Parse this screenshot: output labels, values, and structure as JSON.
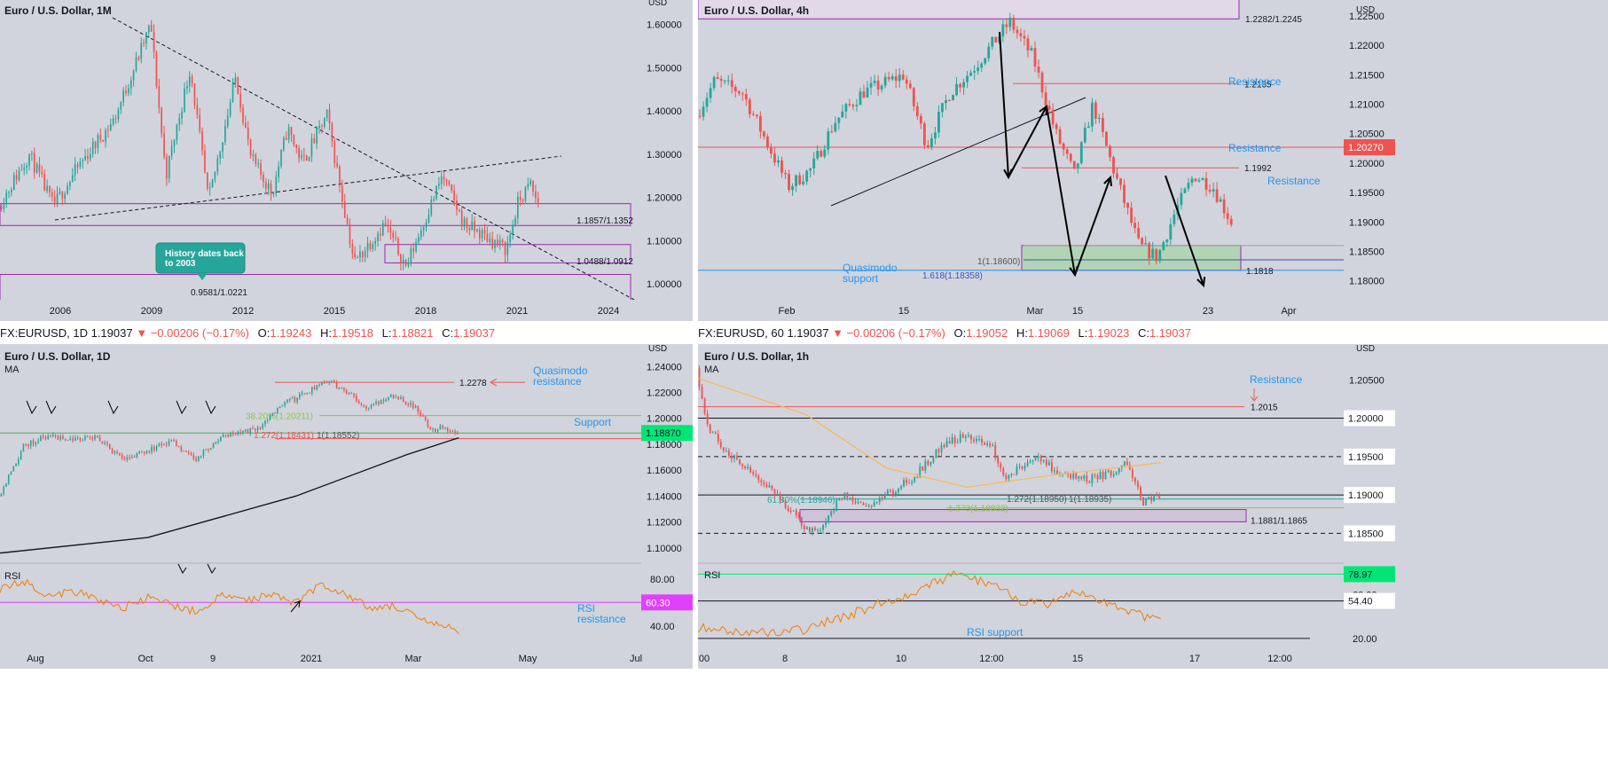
{
  "colors": {
    "bg": "#d1d4dc",
    "up": "#26a69a",
    "down": "#ef5350",
    "blue": "#2196f3",
    "purple": "#9c27b0",
    "rsi": "#f57c00",
    "ma": "#131722",
    "green": "#00e676",
    "magenta": "#e040fb",
    "orange": "#ffb74d"
  },
  "chart_data": [
    {
      "type": "candlestick",
      "title": "Euro / U.S. Dollar, 1M",
      "ylabel": "USD",
      "ylim": [
        0.98,
        1.64
      ],
      "x_ticks": [
        "2006",
        "2009",
        "2012",
        "2015",
        "2018",
        "2021",
        "2024"
      ],
      "y_ticks": [
        "1.60000",
        "1.50000",
        "1.40000",
        "1.30000",
        "1.20000",
        "1.10000",
        "1.00000"
      ],
      "zones": [
        {
          "label": "1.1857/1.1352",
          "top": 1.1857,
          "bottom": 1.1352
        },
        {
          "label": "1.0488/1.0912",
          "top": 1.0912,
          "bottom": 1.0488
        },
        {
          "label": "0.9581/1.0221",
          "top": 1.0221,
          "bottom": 0.9581
        }
      ],
      "annotations": {
        "callout": "History dates back to 2003"
      },
      "path_points": [
        [
          2003.5,
          1.18
        ],
        [
          2004.5,
          1.3
        ],
        [
          2005.3,
          1.18
        ],
        [
          2006.2,
          1.28
        ],
        [
          2007.3,
          1.38
        ],
        [
          2008.5,
          1.6
        ],
        [
          2009.0,
          1.25
        ],
        [
          2009.8,
          1.5
        ],
        [
          2010.4,
          1.19
        ],
        [
          2011.3,
          1.48
        ],
        [
          2011.8,
          1.29
        ],
        [
          2012.5,
          1.21
        ],
        [
          2013.0,
          1.36
        ],
        [
          2013.5,
          1.28
        ],
        [
          2014.3,
          1.39
        ],
        [
          2015.2,
          1.05
        ],
        [
          2016.2,
          1.14
        ],
        [
          2016.9,
          1.04
        ],
        [
          2018.1,
          1.25
        ],
        [
          2018.8,
          1.14
        ],
        [
          2019.5,
          1.11
        ],
        [
          2020.2,
          1.08
        ],
        [
          2020.6,
          1.19
        ],
        [
          2021.0,
          1.23
        ],
        [
          2021.2,
          1.19
        ]
      ]
    },
    {
      "type": "candlestick",
      "title": "Euro / U.S. Dollar, 4h",
      "ylabel": "USD",
      "ylim": [
        1.178,
        1.2265
      ],
      "x_ticks": [
        "Feb",
        "15",
        "Mar",
        "15",
        "23",
        "Apr"
      ],
      "y_ticks": [
        "1.22500",
        "1.22000",
        "1.21500",
        "1.21000",
        "1.20500",
        "1.20000",
        "1.19500",
        "1.19000",
        "1.18500",
        "1.18000"
      ],
      "price_label": "1.20270",
      "levels": [
        {
          "label": "1.2135",
          "text": "Resistance",
          "value": 1.2135
        },
        {
          "label": "",
          "text": "Resistance",
          "value": 1.2027
        },
        {
          "label": "1.1992",
          "text": "Resistance",
          "value": 1.1992
        },
        {
          "label": "1.1818",
          "text": "",
          "value": 1.1818
        }
      ],
      "zones": [
        {
          "label": "1.2282/1.2245",
          "top": 1.2282,
          "bottom": 1.2245
        },
        {
          "label": "",
          "top": 1.186,
          "bottom": 1.1818
        }
      ],
      "annotations": {
        "support": "Quasimodo support",
        "fib1": "1(1.18600)",
        "fib2": "1.618(1.18358)"
      },
      "path_points": [
        [
          0,
          1.208
        ],
        [
          4,
          1.214
        ],
        [
          10,
          1.212
        ],
        [
          20,
          1.196
        ],
        [
          25,
          1.199
        ],
        [
          30,
          1.207
        ],
        [
          36,
          1.212
        ],
        [
          45,
          1.215
        ],
        [
          50,
          1.203
        ],
        [
          55,
          1.212
        ],
        [
          60,
          1.216
        ],
        [
          68,
          1.224
        ],
        [
          73,
          1.218
        ],
        [
          78,
          1.205
        ],
        [
          82,
          1.198
        ],
        [
          86,
          1.21
        ],
        [
          90,
          1.2
        ],
        [
          96,
          1.186
        ],
        [
          100,
          1.184
        ],
        [
          104,
          1.192
        ],
        [
          108,
          1.198
        ],
        [
          112,
          1.196
        ],
        [
          116,
          1.19
        ]
      ]
    },
    {
      "type": "candlestick",
      "title": "Euro / U.S. Dollar, 1D",
      "ylabel": "USD",
      "indicator": "MA",
      "ylim": [
        1.093,
        1.245
      ],
      "x_ticks": [
        "Aug",
        "Oct",
        "9",
        "2021",
        "Mar",
        "May",
        "Jul"
      ],
      "y_ticks": [
        "1.24000",
        "1.22000",
        "1.20000",
        "1.18000",
        "1.16000",
        "1.14000",
        "1.12000",
        "1.10000"
      ],
      "price_label": "1.18870",
      "levels": [
        {
          "label": "1.2278",
          "text": "Quasimodo resistance",
          "value": 1.2278
        },
        {
          "label": "38.20%(1.20211)",
          "text": "Support",
          "value": 1.2021
        },
        {
          "label": "1.272(1.18431)",
          "text": "",
          "value": 1.1843
        },
        {
          "label": "1(1.18552)",
          "text": "",
          "value": 1.1855
        }
      ],
      "path_points": [
        [
          0,
          1.14
        ],
        [
          10,
          1.178
        ],
        [
          18,
          1.186
        ],
        [
          28,
          1.184
        ],
        [
          40,
          1.185
        ],
        [
          50,
          1.168
        ],
        [
          60,
          1.175
        ],
        [
          70,
          1.183
        ],
        [
          80,
          1.168
        ],
        [
          90,
          1.185
        ],
        [
          105,
          1.192
        ],
        [
          115,
          1.21
        ],
        [
          125,
          1.22
        ],
        [
          132,
          1.23
        ],
        [
          140,
          1.222
        ],
        [
          150,
          1.208
        ],
        [
          160,
          1.218
        ],
        [
          168,
          1.21
        ],
        [
          176,
          1.19
        ],
        [
          180,
          1.193
        ],
        [
          186,
          1.19
        ]
      ],
      "ma": [
        [
          0,
          1.096
        ],
        [
          60,
          1.108
        ],
        [
          120,
          1.14
        ],
        [
          165,
          1.172
        ],
        [
          186,
          1.185
        ]
      ],
      "rsi": {
        "label": "RSI",
        "ylim": [
          25,
          90
        ],
        "y_ticks": [
          "80.00",
          "60.00",
          "40.00"
        ],
        "level_label": "60.30",
        "level_value": 60.3,
        "annotation": "RSI resistance",
        "points": [
          [
            0,
            72
          ],
          [
            10,
            78
          ],
          [
            20,
            66
          ],
          [
            30,
            70
          ],
          [
            40,
            62
          ],
          [
            50,
            56
          ],
          [
            60,
            64
          ],
          [
            70,
            58
          ],
          [
            80,
            52
          ],
          [
            90,
            66
          ],
          [
            100,
            62
          ],
          [
            110,
            68
          ],
          [
            120,
            60
          ],
          [
            130,
            76
          ],
          [
            140,
            68
          ],
          [
            150,
            55
          ],
          [
            160,
            58
          ],
          [
            170,
            45
          ],
          [
            180,
            40
          ],
          [
            186,
            35
          ]
        ]
      }
    },
    {
      "type": "candlestick",
      "title": "Euro / U.S. Dollar, 1h",
      "ylabel": "USD",
      "indicator": "MA",
      "ylim": [
        1.1825,
        1.2085
      ],
      "x_ticks": [
        "00",
        "8",
        "10",
        "12:00",
        "15",
        "17",
        "12:00"
      ],
      "y_ticks": [
        "1.20500",
        "1.20000",
        "1.19500",
        "1.19000",
        "1.18500"
      ],
      "price_labels": [
        "1.20000",
        "1.19500",
        "1.19000",
        "1.18500"
      ],
      "levels": [
        {
          "label": "1.2015",
          "text": "Resistance",
          "value": 1.2015
        },
        {
          "label": "61.80%(1.18946)",
          "text": "",
          "value": 1.18946
        },
        {
          "label": "1.272(1.18950)",
          "text": "",
          "value": 1.1895
        },
        {
          "label": "1(1.18935)",
          "text": "",
          "value": 1.18935
        },
        {
          "label": "1.273(1.18832)",
          "text": "",
          "value": 1.18832
        }
      ],
      "zones": [
        {
          "label": "1.1881/1.1865",
          "top": 1.1881,
          "bottom": 1.1865
        }
      ],
      "path_points": [
        [
          0,
          1.2065
        ],
        [
          4,
          1.199
        ],
        [
          10,
          1.196
        ],
        [
          20,
          1.193
        ],
        [
          30,
          1.19
        ],
        [
          40,
          1.186
        ],
        [
          46,
          1.185
        ],
        [
          54,
          1.19
        ],
        [
          62,
          1.1885
        ],
        [
          70,
          1.19
        ],
        [
          80,
          1.192
        ],
        [
          90,
          1.196
        ],
        [
          100,
          1.198
        ],
        [
          110,
          1.196
        ],
        [
          115,
          1.192
        ],
        [
          125,
          1.195
        ],
        [
          135,
          1.193
        ],
        [
          145,
          1.192
        ],
        [
          155,
          1.193
        ],
        [
          160,
          1.194
        ],
        [
          166,
          1.189
        ],
        [
          172,
          1.19
        ]
      ],
      "ma": [
        [
          0,
          1.2052
        ],
        [
          40,
          1.2005
        ],
        [
          70,
          1.1935
        ],
        [
          100,
          1.191
        ],
        [
          130,
          1.1925
        ],
        [
          172,
          1.1942
        ]
      ],
      "rsi": {
        "label": "RSI",
        "ylim": [
          15,
          85
        ],
        "y_ticks": [
          "60.00",
          "20.00"
        ],
        "top_label": "78.97",
        "top_value": 78.97,
        "level_label": "54.40",
        "level_value": 54.4,
        "annotation": "RSI support",
        "points": [
          [
            0,
            30
          ],
          [
            20,
            25
          ],
          [
            40,
            28
          ],
          [
            60,
            45
          ],
          [
            80,
            62
          ],
          [
            95,
            78
          ],
          [
            110,
            70
          ],
          [
            120,
            55
          ],
          [
            130,
            50
          ],
          [
            140,
            62
          ],
          [
            150,
            55
          ],
          [
            160,
            45
          ],
          [
            166,
            40
          ],
          [
            172,
            42
          ]
        ]
      }
    }
  ],
  "infobars": [
    {
      "symbol": "FX:EURUSD, 1D",
      "price": "1.19037",
      "change": "▼ −0.00206 (−0.17%)",
      "o": "O:",
      "ov": "1.19243",
      "h": "H:",
      "hv": "1.19518",
      "l": "L:",
      "lv": "1.18821",
      "c": "C:",
      "cv": "1.19037"
    },
    {
      "symbol": "FX:EURUSD, 60",
      "price": "1.19037",
      "change": "▼ −0.00206 (−0.17%)",
      "o": "O:",
      "ov": "1.19052",
      "h": "H:",
      "hv": "1.19069",
      "l": "L:",
      "lv": "1.19023",
      "c": "C:",
      "cv": "1.19037"
    }
  ]
}
